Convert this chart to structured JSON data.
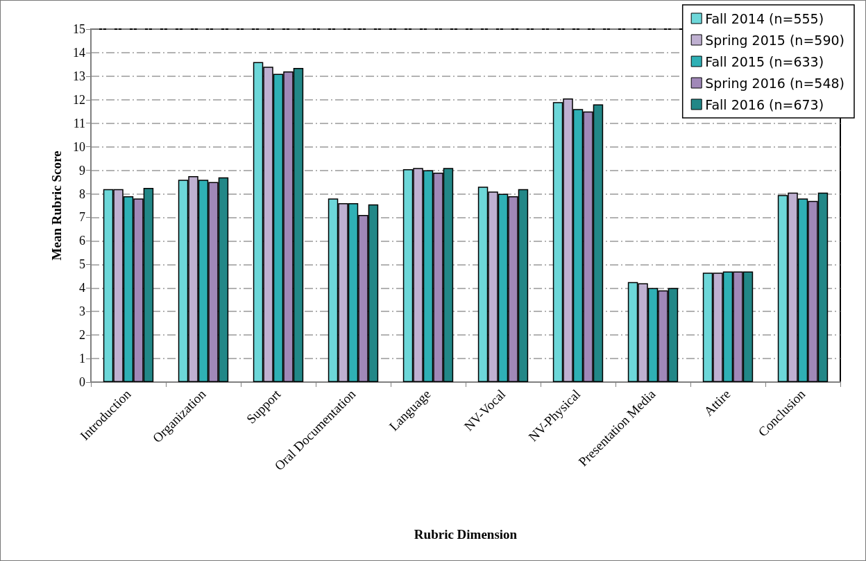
{
  "chart_data": {
    "type": "bar",
    "xlabel": "Rubric Dimension",
    "ylabel": "Mean Rubric Score",
    "categories": [
      "Introduction",
      "Organization",
      "Support",
      "Oral Documentation",
      "Language",
      "NV-Vocal",
      "NV-Physical",
      "Presentation Media",
      "Attire",
      "Conclusion"
    ],
    "series": [
      {
        "name": "Fall 2014 (n=555)",
        "color": "#6dd7d9",
        "values": [
          8.2,
          8.6,
          13.6,
          7.8,
          9.05,
          8.3,
          11.9,
          4.25,
          4.65,
          7.95
        ]
      },
      {
        "name": "Spring 2015 (n=590)",
        "color": "#bfb0d1",
        "values": [
          8.2,
          8.75,
          13.4,
          7.6,
          9.1,
          8.1,
          12.05,
          4.2,
          4.65,
          8.05
        ]
      },
      {
        "name": "Fall 2015 (n=633)",
        "color": "#2fb0b5",
        "values": [
          7.9,
          8.6,
          13.1,
          7.6,
          9.0,
          8.0,
          11.6,
          4.0,
          4.7,
          7.8
        ]
      },
      {
        "name": "Spring 2016 (n=548)",
        "color": "#a088b8",
        "values": [
          7.8,
          8.5,
          13.2,
          7.1,
          8.9,
          7.9,
          11.5,
          3.9,
          4.7,
          7.7
        ]
      },
      {
        "name": "Fall 2016 (n=673)",
        "color": "#228787",
        "values": [
          8.25,
          8.7,
          13.35,
          7.55,
          9.1,
          8.2,
          11.8,
          4.0,
          4.7,
          8.05
        ]
      }
    ],
    "ylim": [
      0,
      15
    ],
    "yticks": [
      0,
      1,
      2,
      3,
      4,
      5,
      6,
      7,
      8,
      9,
      10,
      11,
      12,
      13,
      14,
      15
    ],
    "grid": "y",
    "legend": "top right"
  }
}
